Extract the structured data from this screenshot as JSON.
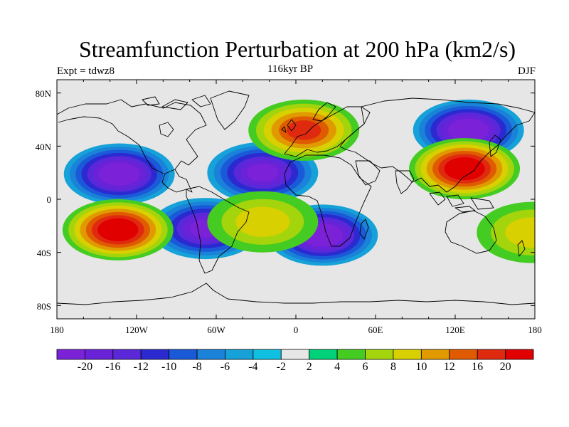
{
  "title": "Streamfunction Perturbation at 200 hPa (km2/s)",
  "left_string": "Expt = tdwz8",
  "center_string": "116kyr BP",
  "right_string": "DJF",
  "map": {
    "projection": "cylindrical-equidistant",
    "lon_range": [
      -180,
      180
    ],
    "lat_range": [
      -90,
      90
    ],
    "x_tick_labels": [
      "180",
      "120W",
      "60W",
      "0",
      "60E",
      "120E",
      "180"
    ],
    "y_tick_labels": [
      "80N",
      "40N",
      "0",
      "40S",
      "80S"
    ],
    "background_color": "#e6e6e6",
    "coastline_color": "#000000"
  },
  "colorbar": {
    "colors": [
      "#7b22d8",
      "#6a22d8",
      "#5a28d8",
      "#2a2ad0",
      "#1a5ad8",
      "#1a82d8",
      "#16a2d8",
      "#10c0e0",
      "#e6e6e6",
      "#00d27a",
      "#44cc22",
      "#a4d40c",
      "#d8d000",
      "#e09a00",
      "#e05a00",
      "#e02a10",
      "#e00000"
    ],
    "tick_labels": [
      "-20",
      "-16",
      "-12",
      "-10",
      "-8",
      "-6",
      "-4",
      "-2",
      "2",
      "4",
      "6",
      "8",
      "10",
      "12",
      "16",
      "20"
    ]
  },
  "features": [
    {
      "name": "north-pacific-low",
      "lon": -133,
      "lat": 19,
      "value": -22
    },
    {
      "name": "north-atlantic-low",
      "lon": -25,
      "lat": 20,
      "value": -20
    },
    {
      "name": "south-america-low",
      "lon": -68,
      "lat": -22,
      "value": -20
    },
    {
      "name": "south-africa-low",
      "lon": 20,
      "lat": -27,
      "value": -22
    },
    {
      "name": "east-asia-low",
      "lon": 130,
      "lat": 52,
      "value": -22
    },
    {
      "name": "south-pacific-high",
      "lon": -134,
      "lat": -23,
      "value": 22
    },
    {
      "name": "europe-high",
      "lon": 6,
      "lat": 52,
      "value": 18
    },
    {
      "name": "asia-tropical-high",
      "lon": 127,
      "lat": 23,
      "value": 22
    },
    {
      "name": "australia-east-high",
      "lon": 178,
      "lat": -25,
      "value": 8
    },
    {
      "name": "south-atlantic-high",
      "lon": -25,
      "lat": -17,
      "value": 8
    }
  ]
}
